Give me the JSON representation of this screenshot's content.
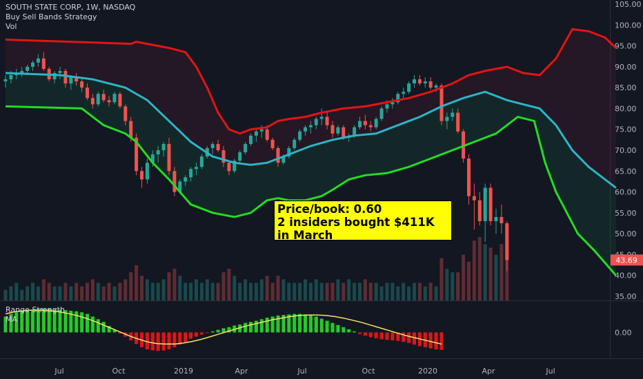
{
  "header": {
    "symbol": "SOUTH STATE CORP, 1W, NASDAQ",
    "indicator": "Buy Sell Bands Strategy",
    "volume_label": "Vol"
  },
  "oscillator": {
    "title": "Range Strength",
    "ma_label": "MA",
    "zero_label": "0.00"
  },
  "annotation": {
    "line1": "Price/book: 0.60",
    "line2": "2 insiders bought $411K",
    "line3": "in March"
  },
  "last_price": "43.69",
  "colors": {
    "background": "#131722",
    "up": "#26a69a",
    "down": "#ef5350",
    "upper_band": "#e31414",
    "middle_band": "#2bb5c8",
    "lower_band": "#22dd22",
    "osc_positive": "#22cc22",
    "osc_negative": "#e31414",
    "osc_ma": "#f5e663",
    "annotation_bg": "#ffff00"
  },
  "chart_data": {
    "type": "candlestick",
    "title": "SOUTH STATE CORP, 1W, NASDAQ",
    "y_ticks": [
      "35.00",
      "40.00",
      "45.00",
      "50.00",
      "55.00",
      "60.00",
      "65.00",
      "70.00",
      "75.00",
      "80.00",
      "85.00",
      "90.00",
      "95.00",
      "100.00",
      "105.00"
    ],
    "x_ticks": [
      "Jul",
      "Oct",
      "2019",
      "Apr",
      "Jul",
      "Oct",
      "2020",
      "Apr",
      "Jul"
    ],
    "ylim": [
      34,
      106
    ],
    "candles": [
      [
        86.5,
        88,
        85,
        87
      ],
      [
        87,
        89,
        86,
        88
      ],
      [
        88,
        89.5,
        87,
        88.5
      ],
      [
        88.5,
        90,
        87.5,
        89
      ],
      [
        89,
        90.5,
        88,
        90
      ],
      [
        90,
        91.5,
        89,
        91
      ],
      [
        91,
        93,
        90,
        92
      ],
      [
        92,
        93.5,
        89,
        89.5
      ],
      [
        89.5,
        90,
        86.5,
        87
      ],
      [
        87,
        89,
        86,
        88.5
      ],
      [
        88.5,
        90,
        87,
        89
      ],
      [
        89,
        89.5,
        85,
        86
      ],
      [
        86,
        88,
        84.5,
        87.5
      ],
      [
        87.5,
        88.5,
        85.5,
        86.5
      ],
      [
        86.5,
        87.5,
        84,
        85
      ],
      [
        85,
        86,
        82,
        82.5
      ],
      [
        82.5,
        83.5,
        80,
        81
      ],
      [
        81,
        84,
        80.5,
        83.5
      ],
      [
        83.5,
        84.5,
        81.5,
        82
      ],
      [
        82,
        83,
        80.5,
        81.5
      ],
      [
        81.5,
        84,
        81,
        83.5
      ],
      [
        83.5,
        84,
        80,
        80.5
      ],
      [
        80.5,
        81,
        76,
        77
      ],
      [
        77,
        78,
        72,
        73
      ],
      [
        73,
        74,
        64,
        65
      ],
      [
        65,
        66,
        61,
        63
      ],
      [
        63,
        68,
        62,
        67
      ],
      [
        67,
        70,
        66,
        69
      ],
      [
        69,
        71,
        67,
        70
      ],
      [
        70,
        72,
        68.5,
        71.5
      ],
      [
        71.5,
        73,
        64,
        65
      ],
      [
        65,
        66,
        59,
        60
      ],
      [
        60,
        63,
        59.5,
        62.5
      ],
      [
        62.5,
        64,
        61.5,
        63.5
      ],
      [
        63.5,
        66,
        62.5,
        65.5
      ],
      [
        65.5,
        67,
        64,
        66
      ],
      [
        66,
        69,
        65.5,
        68.5
      ],
      [
        68.5,
        71,
        68,
        70.5
      ],
      [
        70.5,
        72,
        69,
        71.5
      ],
      [
        71.5,
        72.5,
        69.5,
        70
      ],
      [
        70,
        71,
        66,
        67
      ],
      [
        67,
        67.5,
        64,
        65
      ],
      [
        65,
        68,
        64.5,
        67.5
      ],
      [
        67.5,
        70,
        67,
        69.5
      ],
      [
        69.5,
        72,
        69,
        71.5
      ],
      [
        71.5,
        74,
        71,
        73.5
      ],
      [
        73.5,
        75,
        72,
        74.5
      ],
      [
        74.5,
        76,
        73,
        75
      ],
      [
        75,
        76,
        72,
        72.5
      ],
      [
        72.5,
        73,
        70,
        70.5
      ],
      [
        70.5,
        71,
        66,
        67
      ],
      [
        67,
        69,
        66.5,
        68.5
      ],
      [
        68.5,
        71,
        68,
        70.5
      ],
      [
        70.5,
        73,
        70,
        72.5
      ],
      [
        72.5,
        75,
        72,
        74.5
      ],
      [
        74.5,
        76,
        73.5,
        75.5
      ],
      [
        75.5,
        77,
        74,
        76
      ],
      [
        76,
        78,
        75,
        77.5
      ],
      [
        77.5,
        80,
        76,
        78
      ],
      [
        78,
        79,
        75,
        76
      ],
      [
        76,
        77,
        73,
        74
      ],
      [
        74,
        76,
        73.5,
        75.5
      ],
      [
        75.5,
        76,
        72.5,
        73
      ],
      [
        73,
        74,
        72,
        73.5
      ],
      [
        73.5,
        76,
        73,
        75.5
      ],
      [
        75.5,
        78,
        75,
        77
      ],
      [
        77,
        78.5,
        75,
        76
      ],
      [
        76,
        77,
        74.5,
        75.5
      ],
      [
        75.5,
        78,
        75,
        77.5
      ],
      [
        77.5,
        80.5,
        77,
        80
      ],
      [
        80,
        82,
        79,
        81
      ],
      [
        81,
        82.5,
        80,
        81.5
      ],
      [
        81.5,
        84,
        81,
        83.5
      ],
      [
        83.5,
        85,
        82.5,
        84
      ],
      [
        84,
        86.5,
        83.5,
        86
      ],
      [
        86,
        88,
        85,
        87
      ],
      [
        87,
        88,
        85.5,
        86
      ],
      [
        86,
        87.5,
        85,
        86.5
      ],
      [
        86.5,
        87.5,
        84.5,
        85
      ],
      [
        85,
        86,
        84,
        85.5
      ],
      [
        85.5,
        86,
        76,
        77
      ],
      [
        77,
        79,
        75,
        78
      ],
      [
        78,
        80,
        77,
        79
      ],
      [
        79,
        80,
        74,
        74.5
      ],
      [
        74.5,
        75,
        67,
        68
      ],
      [
        68,
        69,
        57,
        59
      ],
      [
        59,
        62,
        51,
        58
      ],
      [
        58,
        60,
        52,
        53
      ],
      [
        53,
        62,
        48,
        61
      ],
      [
        61,
        62,
        52,
        53
      ],
      [
        53,
        56,
        50,
        54
      ],
      [
        54,
        57,
        50,
        52.5
      ],
      [
        52.5,
        53,
        41,
        43.69
      ]
    ],
    "bands": {
      "upper": [
        [
          0,
          96.5
        ],
        [
          12,
          96
        ],
        [
          23,
          95.5
        ],
        [
          24,
          96
        ],
        [
          28,
          95
        ],
        [
          30,
          94.5
        ],
        [
          33,
          93.5
        ],
        [
          35,
          90
        ],
        [
          37,
          85
        ],
        [
          39,
          79
        ],
        [
          41,
          75
        ],
        [
          43,
          74
        ],
        [
          45,
          75
        ],
        [
          48,
          75.5
        ],
        [
          50,
          77
        ],
        [
          52,
          77.5
        ],
        [
          55,
          78
        ],
        [
          58,
          79
        ],
        [
          62,
          80
        ],
        [
          66,
          80.5
        ],
        [
          70,
          81.5
        ],
        [
          74,
          82.5
        ],
        [
          78,
          84
        ],
        [
          82,
          86
        ],
        [
          85,
          88
        ],
        [
          88,
          89
        ],
        [
          92,
          90
        ],
        [
          95,
          88.5
        ],
        [
          98,
          88
        ],
        [
          101,
          92
        ],
        [
          104,
          99
        ],
        [
          107,
          98.5
        ],
        [
          110,
          97
        ],
        [
          112,
          94.5
        ]
      ],
      "middle": [
        [
          0,
          88.5
        ],
        [
          10,
          88
        ],
        [
          16,
          87
        ],
        [
          22,
          85
        ],
        [
          26,
          82
        ],
        [
          30,
          77
        ],
        [
          34,
          72
        ],
        [
          38,
          68.5
        ],
        [
          42,
          67
        ],
        [
          45,
          66.5
        ],
        [
          48,
          67
        ],
        [
          52,
          69
        ],
        [
          56,
          71
        ],
        [
          60,
          72.5
        ],
        [
          64,
          73.5
        ],
        [
          68,
          74
        ],
        [
          72,
          76
        ],
        [
          76,
          78
        ],
        [
          80,
          80.5
        ],
        [
          84,
          82.5
        ],
        [
          88,
          84
        ],
        [
          92,
          82
        ],
        [
          95,
          81
        ],
        [
          98,
          80
        ],
        [
          101,
          76
        ],
        [
          104,
          70
        ],
        [
          107,
          66
        ],
        [
          110,
          63
        ],
        [
          112,
          61
        ]
      ],
      "lower": [
        [
          0,
          80.5
        ],
        [
          14,
          80
        ],
        [
          16,
          78
        ],
        [
          18,
          76
        ],
        [
          22,
          74
        ],
        [
          24,
          72
        ],
        [
          27,
          67
        ],
        [
          30,
          63
        ],
        [
          34,
          57
        ],
        [
          38,
          55
        ],
        [
          42,
          54
        ],
        [
          45,
          55
        ],
        [
          48,
          58
        ],
        [
          50,
          58.5
        ],
        [
          52,
          58
        ],
        [
          55,
          58
        ],
        [
          58,
          59
        ],
        [
          60,
          60.5
        ],
        [
          63,
          63
        ],
        [
          66,
          64
        ],
        [
          70,
          64.5
        ],
        [
          74,
          66
        ],
        [
          78,
          68
        ],
        [
          82,
          70
        ],
        [
          86,
          72
        ],
        [
          90,
          74
        ],
        [
          94,
          78
        ],
        [
          97,
          77
        ],
        [
          99,
          67
        ],
        [
          101,
          60
        ],
        [
          103,
          55
        ],
        [
          105,
          50
        ],
        [
          108,
          46
        ],
        [
          110,
          43
        ],
        [
          112,
          40
        ]
      ]
    },
    "volume": [
      3,
      4,
      5,
      3,
      4,
      5,
      4,
      6,
      5,
      4,
      4,
      5,
      4,
      5,
      4,
      5,
      6,
      5,
      4,
      5,
      4,
      5,
      6,
      8,
      10,
      7,
      6,
      5,
      5,
      6,
      8,
      9,
      7,
      5,
      5,
      6,
      5,
      6,
      5,
      5,
      8,
      9,
      7,
      5,
      6,
      5,
      5,
      6,
      7,
      5,
      7,
      6,
      5,
      5,
      5,
      6,
      5,
      6,
      5,
      5,
      5,
      6,
      5,
      6,
      5,
      5,
      6,
      5,
      5,
      4,
      5,
      5,
      4,
      5,
      4,
      5,
      5,
      4,
      5,
      4,
      12,
      9,
      8,
      8,
      13,
      11,
      17,
      18,
      16,
      15,
      13,
      16,
      18
    ],
    "oscillator": [
      3,
      3.5,
      3.8,
      4,
      4.2,
      4.3,
      4.4,
      4.5,
      4.5,
      4.4,
      4.3,
      4.2,
      4.1,
      4,
      3.8,
      3.5,
      3,
      2.5,
      2,
      1.2,
      0.5,
      -0.2,
      -0.8,
      -1.5,
      -2.2,
      -2.8,
      -3.2,
      -3.4,
      -3.5,
      -3.4,
      -3.2,
      -2.8,
      -2.3,
      -1.8,
      -1.2,
      -0.8,
      -0.4,
      -0.1,
      0.2,
      0.5,
      0.8,
      1,
      1.3,
      1.5,
      1.8,
      2,
      2.2,
      2.5,
      2.8,
      3,
      3.2,
      3.3,
      3.4,
      3.5,
      3.5,
      3.4,
      3.2,
      3,
      2.6,
      2.2,
      1.8,
      1.4,
      1,
      0.6,
      0.2,
      -0.3,
      -0.6,
      -0.9,
      -1.1,
      -1.3,
      -1.4,
      -1.5,
      -1.6,
      -1.8,
      -2,
      -2.3,
      -2.6,
      -2.8,
      -3,
      -3.2,
      -3.3
    ],
    "oscillator_ma": [
      3.5,
      3.9,
      4.1,
      4.2,
      4.2,
      4.1,
      3.9,
      3.6,
      3.2,
      2.7,
      2.1,
      1.4,
      0.7,
      0,
      -0.7,
      -1.3,
      -1.8,
      -2.1,
      -2.2,
      -2.2,
      -2,
      -1.7,
      -1.3,
      -0.8,
      -0.3,
      0.2,
      0.7,
      1.2,
      1.6,
      2,
      2.4,
      2.7,
      3,
      3.2,
      3.3,
      3.3,
      3.2,
      3,
      2.7,
      2.3,
      1.9,
      1.4,
      0.9,
      0.4,
      -0.1,
      -0.6,
      -1,
      -1.4,
      -1.8,
      -2.2
    ],
    "oscillator_range": [
      -4.5,
      5
    ]
  }
}
